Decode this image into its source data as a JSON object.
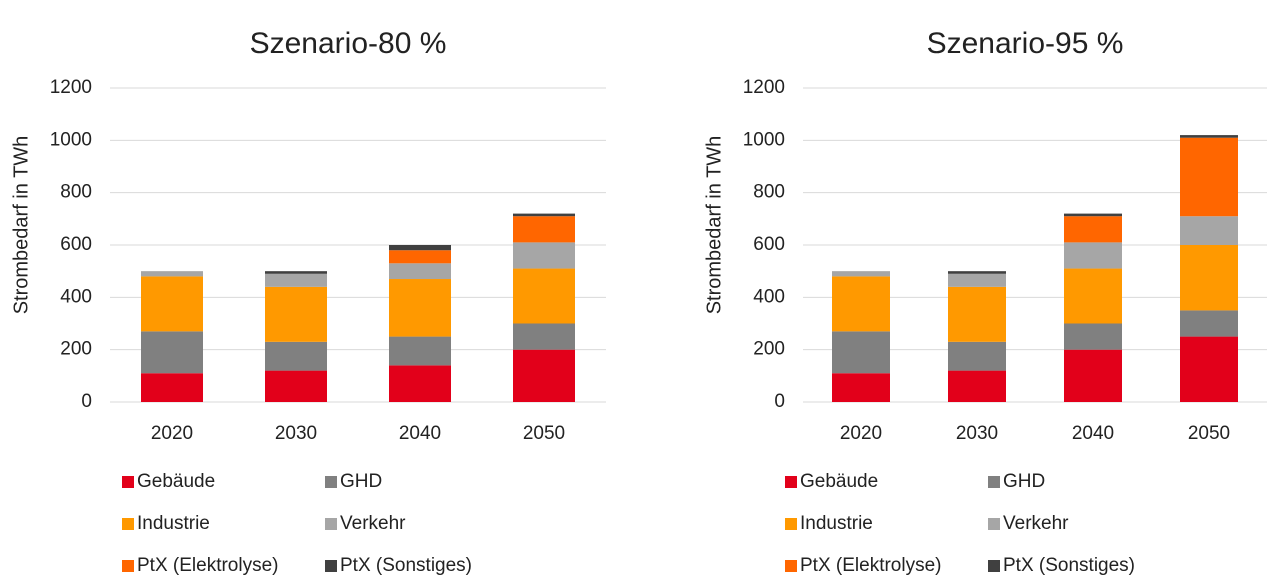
{
  "chart_data": [
    {
      "type": "bar",
      "stacked": true,
      "title": "Szenario-80 %",
      "y_label": "Strombedarf in TWh",
      "categories": [
        "2020",
        "2030",
        "2040",
        "2050"
      ],
      "series": [
        {
          "name": "Gebäude",
          "color": "#e2001a",
          "values": [
            110,
            120,
            140,
            200
          ]
        },
        {
          "name": "GHD",
          "color": "#808080",
          "values": [
            160,
            110,
            110,
            100
          ]
        },
        {
          "name": "Industrie",
          "color": "#ff9900",
          "values": [
            210,
            210,
            220,
            210
          ]
        },
        {
          "name": "Verkehr",
          "color": "#a6a6a6",
          "values": [
            20,
            50,
            60,
            100
          ]
        },
        {
          "name": "PtX (Elektrolyse)",
          "color": "#ff6600",
          "values": [
            0,
            0,
            50,
            100
          ]
        },
        {
          "name": "PtX (Sonstiges)",
          "color": "#404040",
          "values": [
            0,
            10,
            20,
            10
          ]
        }
      ],
      "ylim": [
        0,
        1200
      ],
      "yticks": [
        0,
        200,
        400,
        600,
        800,
        1000,
        1200
      ],
      "grid": true
    },
    {
      "type": "bar",
      "stacked": true,
      "title": "Szenario-95 %",
      "y_label": "Strombedarf in TWh",
      "categories": [
        "2020",
        "2030",
        "2040",
        "2050"
      ],
      "series": [
        {
          "name": "Gebäude",
          "color": "#e2001a",
          "values": [
            110,
            120,
            200,
            250
          ]
        },
        {
          "name": "GHD",
          "color": "#808080",
          "values": [
            160,
            110,
            100,
            100
          ]
        },
        {
          "name": "Industrie",
          "color": "#ff9900",
          "values": [
            210,
            210,
            210,
            250
          ]
        },
        {
          "name": "Verkehr",
          "color": "#a6a6a6",
          "values": [
            20,
            50,
            100,
            110
          ]
        },
        {
          "name": "PtX (Elektrolyse)",
          "color": "#ff6600",
          "values": [
            0,
            0,
            100,
            300
          ]
        },
        {
          "name": "PtX (Sonstiges)",
          "color": "#404040",
          "values": [
            0,
            10,
            10,
            10
          ]
        }
      ],
      "ylim": [
        0,
        1200
      ],
      "yticks": [
        0,
        200,
        400,
        600,
        800,
        1000,
        1200
      ],
      "grid": true
    }
  ]
}
